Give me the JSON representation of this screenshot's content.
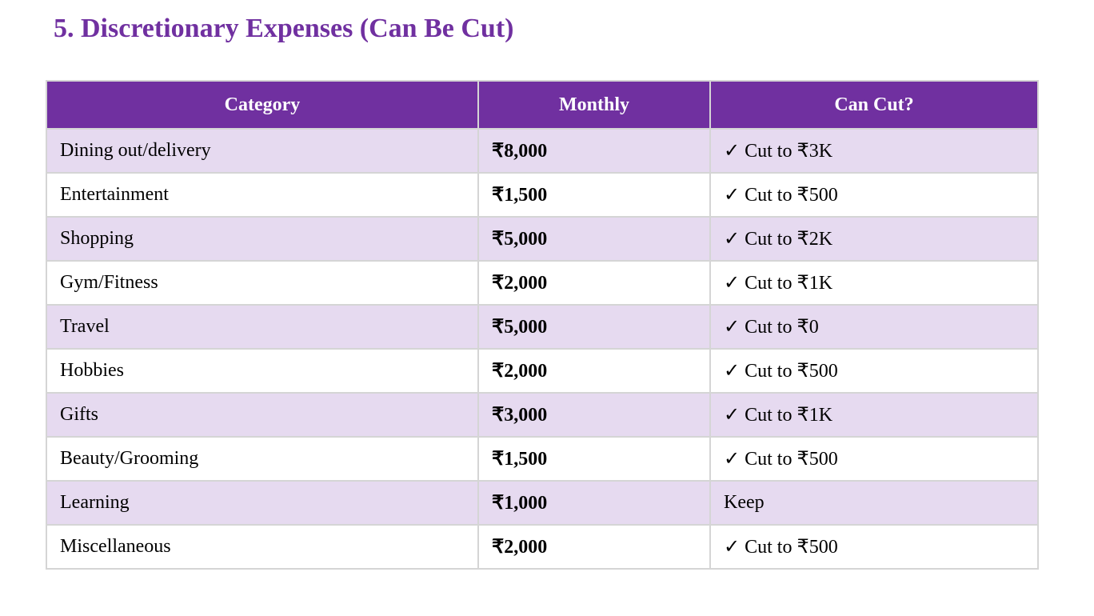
{
  "header": {
    "title": "5. Discretionary Expenses (Can Be Cut)"
  },
  "table": {
    "columns": [
      "Category",
      "Monthly",
      "Can Cut?"
    ],
    "rows": [
      [
        "Dining out/delivery",
        "₹8,000",
        "✓ Cut to ₹3K"
      ],
      [
        "Entertainment",
        "₹1,500",
        "✓ Cut to ₹500"
      ],
      [
        "Shopping",
        "₹5,000",
        "✓ Cut to ₹2K"
      ],
      [
        "Gym/Fitness",
        "₹2,000",
        "✓ Cut to ₹1K"
      ],
      [
        "Travel",
        "₹5,000",
        "✓ Cut to ₹0"
      ],
      [
        "Hobbies",
        "₹2,000",
        "✓ Cut to ₹500"
      ],
      [
        "Gifts",
        "₹3,000",
        "✓ Cut to ₹1K"
      ],
      [
        "Beauty/Grooming",
        "₹1,500",
        "✓ Cut to ₹500"
      ],
      [
        "Learning",
        "₹1,000",
        "Keep"
      ],
      [
        "Miscellaneous",
        "₹2,000",
        "✓ Cut to ₹500"
      ]
    ]
  }
}
